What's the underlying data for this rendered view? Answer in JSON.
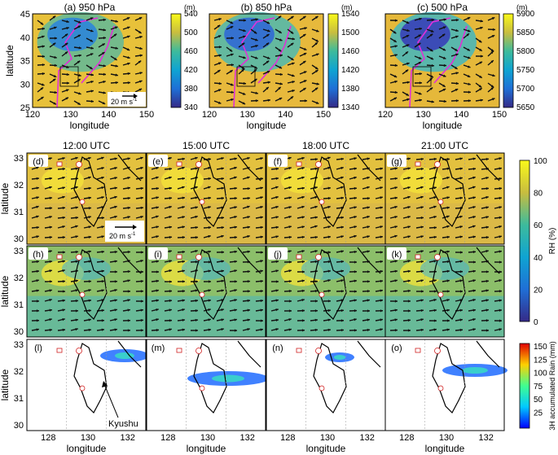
{
  "figure": {
    "top_row": {
      "panels": [
        {
          "id": "a",
          "title": "(a) 950 hPa",
          "colorbar": {
            "unit": "(m)",
            "ticks": [
              540,
              500,
              460,
              420,
              380,
              340
            ]
          }
        },
        {
          "id": "b",
          "title": "(b) 850 hPa",
          "colorbar": {
            "unit": "(m)",
            "ticks": [
              1540,
              1500,
              1460,
              1420,
              1380,
              1340
            ]
          }
        },
        {
          "id": "c",
          "title": "(c) 500 hPa",
          "colorbar": {
            "unit": "(m)",
            "ticks": [
              5900,
              5850,
              5800,
              5750,
              5700,
              5650
            ]
          }
        }
      ],
      "xlabel": "longitude",
      "ylabel": "latitude",
      "xticks": [
        "120",
        "130",
        "140",
        "150"
      ],
      "yticks": [
        "45",
        "40",
        "35",
        "30",
        "25"
      ],
      "wind_ref": "20 m s",
      "wind_ref_exp": "-1"
    },
    "grid": {
      "times": [
        "12:00 UTC",
        "15:00 UTC",
        "18:00 UTC",
        "21:00 UTC"
      ],
      "rows": [
        {
          "labels": [
            "(d)",
            "(e)",
            "(f)",
            "(g)"
          ]
        },
        {
          "labels": [
            "(h)",
            "(i)",
            "(j)",
            "(k)"
          ]
        },
        {
          "labels": [
            "(l)",
            "(m)",
            "(n)",
            "(o)"
          ]
        }
      ],
      "ylabel": "latitude",
      "xlabel": "longitude",
      "yticks": [
        "33",
        "32",
        "31",
        "30"
      ],
      "xticks": [
        "128",
        "130",
        "132"
      ],
      "annotation": "Kyushu",
      "wind_ref": "20 m s",
      "wind_ref_exp": "-1"
    },
    "rh_colorbar": {
      "label": "RH (%)",
      "ticks": [
        100,
        80,
        60,
        40,
        20,
        0
      ]
    },
    "rain_colorbar": {
      "label": "3H accumulated Rain (mm)",
      "ticks": [
        150,
        125,
        100,
        75,
        50,
        25
      ]
    }
  },
  "chart_data": [
    {
      "type": "heatmap",
      "title": "(a) 950 hPa",
      "xlabel": "longitude",
      "ylabel": "latitude",
      "xlim": [
        120,
        150
      ],
      "ylim": [
        25,
        45
      ],
      "colorbar_range": [
        340,
        540
      ],
      "colorbar_unit": "(m)"
    },
    {
      "type": "heatmap",
      "title": "(b) 850 hPa",
      "xlabel": "longitude",
      "ylabel": "latitude",
      "xlim": [
        120,
        150
      ],
      "ylim": [
        25,
        45
      ],
      "colorbar_range": [
        1340,
        1540
      ],
      "colorbar_unit": "(m)"
    },
    {
      "type": "heatmap",
      "title": "(c) 500 hPa",
      "xlabel": "longitude",
      "ylabel": "latitude",
      "xlim": [
        120,
        150
      ],
      "ylim": [
        25,
        45
      ],
      "colorbar_range": [
        5650,
        5900
      ],
      "colorbar_unit": "(m)"
    },
    {
      "type": "heatmap",
      "panels": [
        "(d)",
        "(e)",
        "(f)",
        "(g)",
        "(h)",
        "(i)",
        "(j)",
        "(k)"
      ],
      "times": [
        "12:00 UTC",
        "15:00 UTC",
        "18:00 UTC",
        "21:00 UTC"
      ],
      "xlim": [
        127,
        133
      ],
      "ylim": [
        30,
        34
      ],
      "colorbar": "RH (%)",
      "colorbar_range": [
        0,
        100
      ]
    },
    {
      "type": "heatmap",
      "panels": [
        "(l)",
        "(m)",
        "(n)",
        "(o)"
      ],
      "times": [
        "12:00 UTC",
        "15:00 UTC",
        "18:00 UTC",
        "21:00 UTC"
      ],
      "xlim": [
        127,
        133
      ],
      "ylim": [
        30,
        34
      ],
      "colorbar": "3H accumulated Rain (mm)",
      "colorbar_range": [
        0,
        160
      ]
    }
  ]
}
